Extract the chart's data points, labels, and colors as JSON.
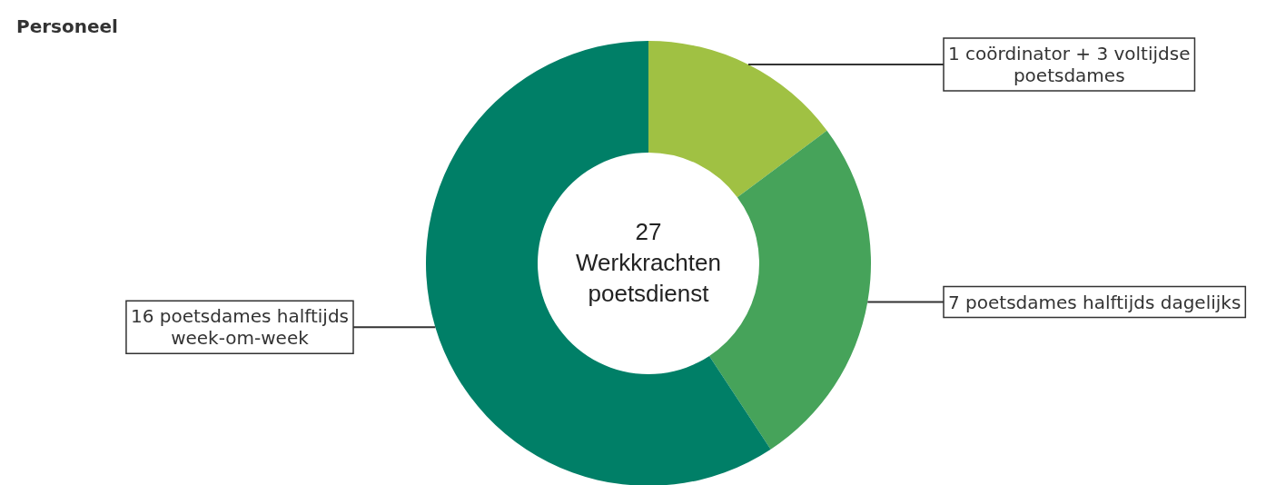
{
  "chart_data": {
    "type": "donut",
    "title": "Personeel",
    "categories": [
      "1 coördinator + 3 voltijdse poetsdames",
      "7 poetsdames halftijds dagelijks",
      "16 poetsdames halftijds week-om-week"
    ],
    "values": [
      4,
      7,
      16
    ],
    "colors": [
      "#a0c143",
      "#46a35a",
      "#007f67"
    ],
    "annotations": [
      "27\nWerkkrachten\npoetsdienst"
    ]
  }
}
